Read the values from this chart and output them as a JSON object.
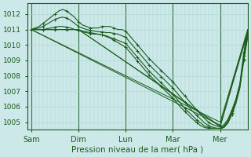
{
  "xlabel": "Pression niveau de la mer( hPa )",
  "bg_color": "#cce8e8",
  "grid_color": "#aad4d4",
  "line_color": "#1a5c1a",
  "ylim": [
    1004.5,
    1012.7
  ],
  "xlim": [
    0,
    112
  ],
  "yticks": [
    1005,
    1006,
    1007,
    1008,
    1009,
    1010,
    1011,
    1012
  ],
  "xtick_positions": [
    2,
    26,
    50,
    74,
    98
  ],
  "xtick_labels": [
    "Sam",
    "Dim",
    "Lun",
    "Mar",
    "Mer"
  ],
  "vlines": [
    2,
    26,
    50,
    74,
    98
  ],
  "series_marked": [
    {
      "x": [
        2,
        4,
        6,
        8,
        10,
        12,
        14,
        16,
        18,
        20,
        22,
        24,
        26,
        28,
        30,
        32,
        34,
        36,
        38,
        40,
        42,
        44,
        46,
        48,
        50,
        52,
        54,
        56,
        58,
        60,
        62,
        64,
        66,
        68,
        70,
        72,
        74,
        76,
        78,
        80,
        82,
        84,
        86,
        88,
        90,
        92,
        94,
        96,
        98,
        100,
        102,
        104,
        106,
        108,
        110,
        112
      ],
      "y": [
        1011.0,
        1011.1,
        1011.2,
        1011.4,
        1011.6,
        1011.8,
        1012.0,
        1012.2,
        1012.3,
        1012.2,
        1012.0,
        1011.8,
        1011.5,
        1011.3,
        1011.2,
        1011.1,
        1011.1,
        1011.1,
        1011.2,
        1011.2,
        1011.2,
        1011.1,
        1011.0,
        1011.0,
        1010.9,
        1010.6,
        1010.3,
        1010.0,
        1009.7,
        1009.4,
        1009.1,
        1008.85,
        1008.6,
        1008.35,
        1008.1,
        1007.85,
        1007.6,
        1007.3,
        1007.0,
        1006.7,
        1006.4,
        1006.1,
        1005.8,
        1005.5,
        1005.25,
        1005.0,
        1004.85,
        1004.75,
        1004.7,
        1004.85,
        1005.2,
        1005.8,
        1006.5,
        1007.5,
        1009.5,
        1011.0
      ]
    },
    {
      "x": [
        2,
        4,
        6,
        8,
        10,
        12,
        14,
        16,
        18,
        20,
        22,
        24,
        26,
        28,
        30,
        32,
        34,
        36,
        38,
        40,
        42,
        44,
        46,
        48,
        50,
        52,
        54,
        56,
        58,
        60,
        62,
        64,
        66,
        68,
        70,
        72,
        74,
        76,
        78,
        80,
        82,
        84,
        86,
        88,
        90,
        92,
        94,
        96,
        98,
        100,
        102,
        104,
        106,
        108,
        110,
        112
      ],
      "y": [
        1011.0,
        1011.05,
        1011.1,
        1011.2,
        1011.35,
        1011.5,
        1011.65,
        1011.75,
        1011.8,
        1011.75,
        1011.6,
        1011.4,
        1011.2,
        1011.1,
        1011.0,
        1010.95,
        1010.9,
        1010.85,
        1010.85,
        1010.8,
        1010.8,
        1010.75,
        1010.7,
        1010.6,
        1010.5,
        1010.2,
        1009.9,
        1009.6,
        1009.3,
        1009.0,
        1008.7,
        1008.45,
        1008.2,
        1007.95,
        1007.7,
        1007.45,
        1007.2,
        1006.9,
        1006.6,
        1006.3,
        1006.0,
        1005.7,
        1005.45,
        1005.2,
        1004.95,
        1004.78,
        1004.68,
        1004.6,
        1004.6,
        1004.75,
        1005.1,
        1005.7,
        1006.4,
        1007.4,
        1009.3,
        1010.9
      ]
    },
    {
      "x": [
        2,
        4,
        6,
        8,
        10,
        12,
        14,
        16,
        18,
        20,
        22,
        24,
        26,
        28,
        30,
        32,
        34,
        36,
        38,
        40,
        42,
        44,
        46,
        48,
        50,
        52,
        54,
        56,
        58,
        60,
        62,
        64,
        66,
        68,
        70,
        72,
        74,
        76,
        78,
        80,
        82,
        84,
        86,
        88,
        90,
        92,
        94,
        96,
        98,
        100,
        102,
        104,
        106,
        108,
        110,
        112
      ],
      "y": [
        1011.0,
        1011.0,
        1011.0,
        1011.0,
        1011.05,
        1011.1,
        1011.15,
        1011.2,
        1011.2,
        1011.15,
        1011.1,
        1011.0,
        1010.95,
        1010.85,
        1010.8,
        1010.75,
        1010.7,
        1010.7,
        1010.65,
        1010.6,
        1010.5,
        1010.4,
        1010.3,
        1010.2,
        1010.1,
        1009.8,
        1009.5,
        1009.2,
        1008.9,
        1008.6,
        1008.3,
        1008.05,
        1007.8,
        1007.55,
        1007.3,
        1007.05,
        1006.8,
        1006.5,
        1006.2,
        1005.9,
        1005.65,
        1005.4,
        1005.15,
        1004.95,
        1004.75,
        1004.65,
        1004.6,
        1004.6,
        1004.6,
        1004.7,
        1005.0,
        1005.6,
        1006.3,
        1007.3,
        1009.1,
        1010.7
      ]
    },
    {
      "x": [
        2,
        4,
        6,
        8,
        10,
        12,
        14,
        16,
        18,
        20,
        22,
        24,
        26,
        28,
        30,
        32,
        34,
        36,
        38,
        40,
        42,
        44,
        46,
        48,
        50,
        52,
        54,
        56,
        58,
        60,
        62,
        64,
        66,
        68,
        70,
        72,
        74,
        76,
        78,
        80,
        82,
        84,
        86,
        88,
        90,
        92,
        94,
        96,
        98,
        100,
        102,
        104,
        106,
        108,
        110,
        112
      ],
      "y": [
        1011.0,
        1011.0,
        1011.0,
        1011.0,
        1011.0,
        1011.0,
        1011.0,
        1011.0,
        1011.0,
        1011.0,
        1011.0,
        1011.0,
        1011.0,
        1010.9,
        1010.85,
        1010.8,
        1010.75,
        1010.7,
        1010.65,
        1010.55,
        1010.45,
        1010.3,
        1010.15,
        1010.0,
        1009.85,
        1009.55,
        1009.25,
        1008.95,
        1008.65,
        1008.35,
        1008.05,
        1007.8,
        1007.55,
        1007.3,
        1007.05,
        1006.8,
        1006.55,
        1006.25,
        1005.95,
        1005.7,
        1005.45,
        1005.2,
        1004.98,
        1004.78,
        1004.65,
        1004.6,
        1004.6,
        1004.6,
        1004.6,
        1004.65,
        1004.95,
        1005.5,
        1006.2,
        1007.2,
        1009.0,
        1010.5
      ]
    }
  ],
  "series_plain": [
    {
      "x": [
        2,
        98,
        112
      ],
      "y": [
        1011.0,
        1005.0,
        1011.0
      ]
    },
    {
      "x": [
        2,
        98,
        112
      ],
      "y": [
        1011.0,
        1004.8,
        1010.8
      ]
    },
    {
      "x": [
        2,
        26,
        98,
        112
      ],
      "y": [
        1011.0,
        1011.0,
        1004.75,
        1011.0
      ]
    },
    {
      "x": [
        2,
        26,
        98,
        112
      ],
      "y": [
        1011.0,
        1011.0,
        1004.7,
        1010.9
      ]
    }
  ]
}
